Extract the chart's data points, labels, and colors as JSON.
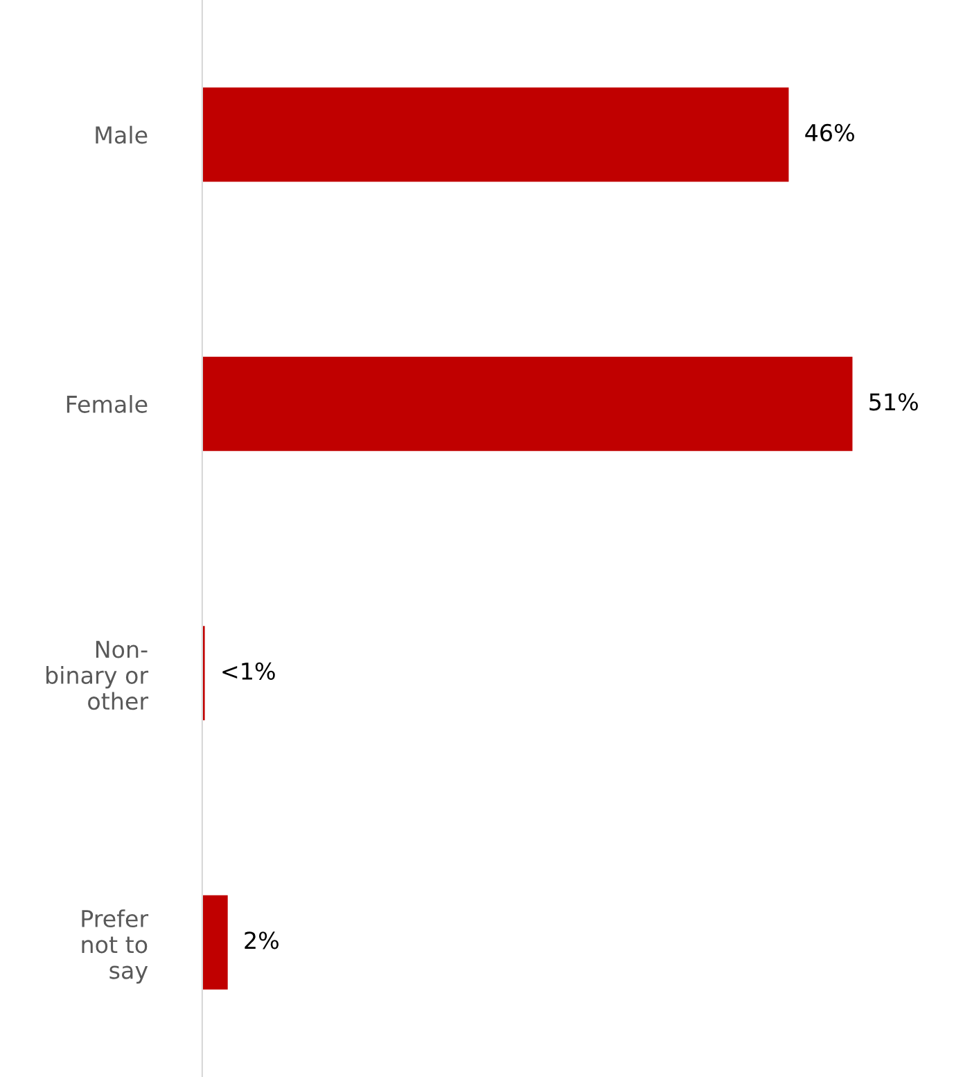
{
  "chart_data": {
    "type": "bar",
    "orientation": "horizontal",
    "categories": [
      "Male",
      "Female",
      "Non-\nbinary or\nother",
      "Prefer\nnot to\nsay"
    ],
    "values": [
      46,
      51,
      0.2,
      2
    ],
    "value_labels": [
      "46%",
      "51%",
      "<1%",
      "2%"
    ],
    "color": "#c00000",
    "grid": false,
    "legend": false
  }
}
